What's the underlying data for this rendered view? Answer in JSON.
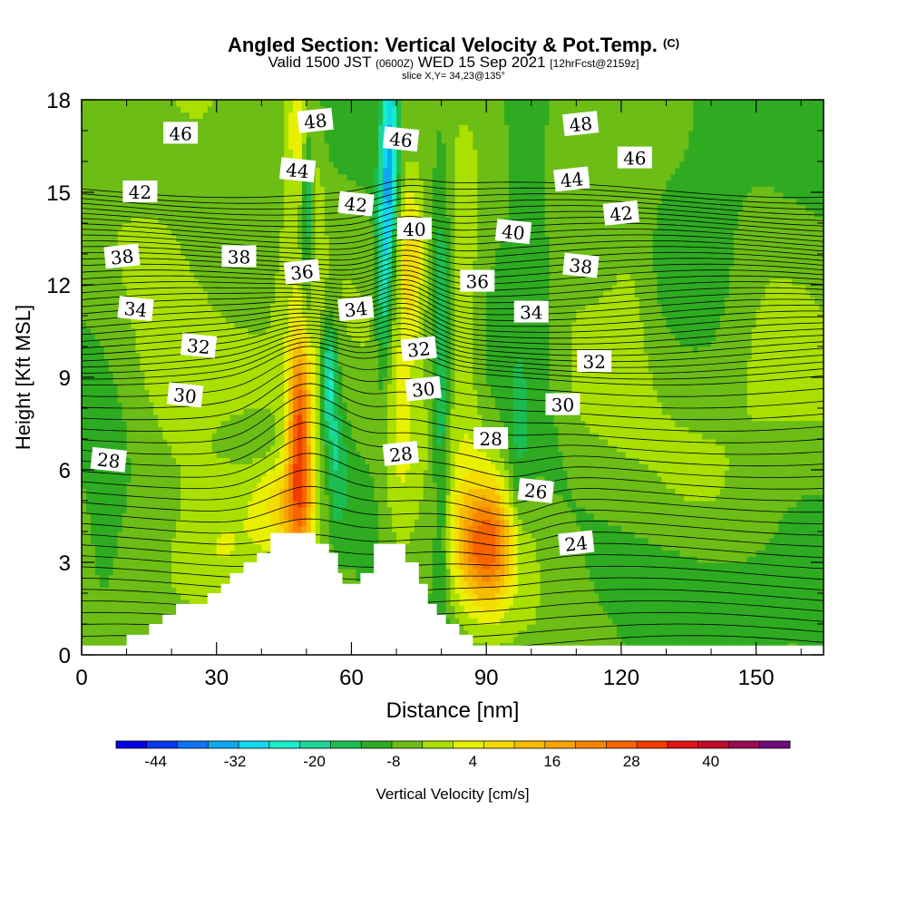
{
  "titles": {
    "main": "Angled Section: Vertical Velocity & Pot.Temp.",
    "main_suffix": "(C)",
    "valid_pre": "Valid 1500 JST",
    "valid_utc": "(0600Z)",
    "valid_date": "WED 15 Sep 2021",
    "valid_fcst": "[12hrFcst@2159z]",
    "slice": "slice X,Y= 34,23@135°"
  },
  "chart_data": {
    "type": "heatmap",
    "xlabel": "Distance [nm]",
    "ylabel": "Height [Kft MSL]",
    "xlim": [
      0,
      165
    ],
    "ylim": [
      0,
      18
    ],
    "x_ticks": [
      0,
      30,
      60,
      90,
      120,
      150
    ],
    "y_ticks": [
      0,
      3,
      6,
      9,
      12,
      15,
      18
    ],
    "colorbar": {
      "label": "Vertical Velocity [cm/s]",
      "tick_labels": [
        "-44",
        "-32",
        "-20",
        "-8",
        "4",
        "16",
        "28",
        "40"
      ],
      "tick_values": [
        -44,
        -32,
        -20,
        -8,
        4,
        16,
        28,
        40
      ],
      "range": [
        -50,
        52
      ],
      "step": 6,
      "colors": [
        "#0000e8",
        "#0a37f0",
        "#0f73f5",
        "#0ea8f2",
        "#12d6ee",
        "#18ecc8",
        "#1bd696",
        "#1cbd50",
        "#2fab22",
        "#6cbd16",
        "#a9e000",
        "#e8f000",
        "#f5dc00",
        "#f7bc00",
        "#f7a200",
        "#f78400",
        "#f76400",
        "#f23c00",
        "#e01414",
        "#c00a2a",
        "#9a0a52",
        "#6e0a7a"
      ]
    },
    "terrain": [
      [
        0,
        0.3
      ],
      [
        10,
        0.3
      ],
      [
        10,
        0.65
      ],
      [
        15,
        0.65
      ],
      [
        15,
        1.0
      ],
      [
        18,
        1.0
      ],
      [
        18,
        1.3
      ],
      [
        21,
        1.3
      ],
      [
        21,
        1.65
      ],
      [
        28,
        1.65
      ],
      [
        28,
        2.0
      ],
      [
        31,
        2.0
      ],
      [
        31,
        2.3
      ],
      [
        33,
        2.3
      ],
      [
        33,
        2.65
      ],
      [
        36,
        2.65
      ],
      [
        36,
        3.0
      ],
      [
        39,
        3.0
      ],
      [
        39,
        3.3
      ],
      [
        42,
        3.3
      ],
      [
        42,
        3.95
      ],
      [
        52,
        3.95
      ],
      [
        52,
        3.6
      ],
      [
        55,
        3.6
      ],
      [
        55,
        3.3
      ],
      [
        57,
        3.3
      ],
      [
        57,
        2.65
      ],
      [
        58,
        2.65
      ],
      [
        58,
        2.3
      ],
      [
        62,
        2.3
      ],
      [
        62,
        2.65
      ],
      [
        65,
        2.65
      ],
      [
        65,
        3.6
      ],
      [
        72,
        3.6
      ],
      [
        72,
        3.0
      ],
      [
        75,
        3.0
      ],
      [
        75,
        2.3
      ],
      [
        77,
        2.3
      ],
      [
        77,
        1.65
      ],
      [
        79,
        1.65
      ],
      [
        79,
        1.3
      ],
      [
        81,
        1.3
      ],
      [
        81,
        1.0
      ],
      [
        84,
        1.0
      ],
      [
        84,
        0.65
      ],
      [
        87,
        0.65
      ],
      [
        87,
        0.3
      ],
      [
        165,
        0.3
      ]
    ],
    "features": [
      {
        "x": 48.5,
        "y": 7.0,
        "w": 30,
        "dx": 1.6,
        "dy": 2.2
      },
      {
        "x": 48.5,
        "y": 6.2,
        "w": 18,
        "dx": 2.6,
        "dy": 3.6
      },
      {
        "x": 48.5,
        "y": 17.5,
        "w": 20,
        "dx": 2.0,
        "dy": 1.8
      },
      {
        "x": 52.0,
        "y": 14.0,
        "w": 10,
        "dx": 1.2,
        "dy": 3.0
      },
      {
        "x": 55.0,
        "y": 9.0,
        "w": -24,
        "dx": 1.3,
        "dy": 1.4
      },
      {
        "x": 50.5,
        "y": 14.5,
        "w": -20,
        "dx": 1.2,
        "dy": 2.8
      },
      {
        "x": 57.0,
        "y": 6.0,
        "w": -12,
        "dx": 1.5,
        "dy": 1.5
      },
      {
        "x": 68.5,
        "y": 16.0,
        "w": -32,
        "dx": 1.3,
        "dy": 2.6
      },
      {
        "x": 67.0,
        "y": 12.0,
        "w": -18,
        "dx": 1.2,
        "dy": 2.6
      },
      {
        "x": 73.0,
        "y": 13.0,
        "w": 22,
        "dx": 2.2,
        "dy": 1.8
      },
      {
        "x": 71.0,
        "y": 6.0,
        "w": 12,
        "dx": 3.0,
        "dy": 3.0
      },
      {
        "x": 90.0,
        "y": 3.5,
        "w": 32,
        "dx": 4.5,
        "dy": 1.3
      },
      {
        "x": 88.5,
        "y": 4.2,
        "w": 14,
        "dx": 7.0,
        "dy": 2.4
      },
      {
        "x": 97.0,
        "y": 5.5,
        "w": -10,
        "dx": 2.0,
        "dy": 2.0
      },
      {
        "x": 45.0,
        "y": 4.8,
        "w": 14,
        "dx": 4.0,
        "dy": 1.0
      },
      {
        "x": 30.0,
        "y": 3.0,
        "w": 10,
        "dx": 8.0,
        "dy": 1.5
      },
      {
        "x": 36.0,
        "y": 7.0,
        "w": -7,
        "dx": 6.0,
        "dy": 0.7
      },
      {
        "x": 40.0,
        "y": 10.0,
        "w": 6,
        "dx": 10.0,
        "dy": 3.0
      },
      {
        "x": 100.0,
        "y": 14.0,
        "w": -8,
        "dx": 6.0,
        "dy": 4.0
      },
      {
        "x": 140.0,
        "y": 14.0,
        "w": -5,
        "dx": 6.0,
        "dy": 4.0
      },
      {
        "x": 113.0,
        "y": 9.0,
        "w": 8,
        "dx": 7.0,
        "dy": 2.0
      },
      {
        "x": 148.0,
        "y": 8.5,
        "w": 6,
        "dx": 12.0,
        "dy": 2.5
      },
      {
        "x": 20.0,
        "y": 15.0,
        "w": 6,
        "dx": 10.0,
        "dy": 3.0
      },
      {
        "x": 20.0,
        "y": 9.5,
        "w": 5,
        "dx": 8.0,
        "dy": 3.0
      },
      {
        "x": 140.0,
        "y": 2.0,
        "w": -6,
        "dx": 20.0,
        "dy": 1.5
      },
      {
        "x": 5.0,
        "y": 3.0,
        "w": -6,
        "dx": 3.0,
        "dy": 3.0
      },
      {
        "x": 80.0,
        "y": 8.0,
        "w": -14,
        "dx": 1.3,
        "dy": 6.0
      },
      {
        "x": 85.0,
        "y": 11.0,
        "w": 10,
        "dx": 2.5,
        "dy": 3.0
      },
      {
        "x": 107.0,
        "y": 16.0,
        "w": 8,
        "dx": 3.0,
        "dy": 2.5
      },
      {
        "x": 122.0,
        "y": 13.0,
        "w": 7,
        "dx": 4.0,
        "dy": 3.0
      }
    ],
    "contour_labels": [
      {
        "text": "48",
        "x": 52,
        "y": 17.3
      },
      {
        "text": "46",
        "x": 22,
        "y": 16.9
      },
      {
        "text": "46",
        "x": 71,
        "y": 16.7
      },
      {
        "text": "48",
        "x": 111,
        "y": 17.2
      },
      {
        "text": "46",
        "x": 123,
        "y": 16.1
      },
      {
        "text": "44",
        "x": 48,
        "y": 15.7
      },
      {
        "text": "44",
        "x": 109,
        "y": 15.4
      },
      {
        "text": "42",
        "x": 13,
        "y": 15.0
      },
      {
        "text": "42",
        "x": 61,
        "y": 14.6
      },
      {
        "text": "42",
        "x": 120,
        "y": 14.3
      },
      {
        "text": "40",
        "x": 74,
        "y": 13.8
      },
      {
        "text": "40",
        "x": 96,
        "y": 13.7
      },
      {
        "text": "38",
        "x": 9,
        "y": 12.9
      },
      {
        "text": "38",
        "x": 35,
        "y": 12.9
      },
      {
        "text": "38",
        "x": 111,
        "y": 12.6
      },
      {
        "text": "36",
        "x": 49,
        "y": 12.4
      },
      {
        "text": "36",
        "x": 88,
        "y": 12.1
      },
      {
        "text": "34",
        "x": 12,
        "y": 11.2
      },
      {
        "text": "34",
        "x": 61,
        "y": 11.2
      },
      {
        "text": "34",
        "x": 100,
        "y": 11.1
      },
      {
        "text": "32",
        "x": 26,
        "y": 10.0
      },
      {
        "text": "32",
        "x": 75,
        "y": 9.9
      },
      {
        "text": "32",
        "x": 114,
        "y": 9.5
      },
      {
        "text": "30",
        "x": 23,
        "y": 8.4
      },
      {
        "text": "30",
        "x": 76,
        "y": 8.6
      },
      {
        "text": "30",
        "x": 107,
        "y": 8.1
      },
      {
        "text": "28",
        "x": 6,
        "y": 6.3
      },
      {
        "text": "28",
        "x": 71,
        "y": 6.5
      },
      {
        "text": "28",
        "x": 91,
        "y": 7.0
      },
      {
        "text": "26",
        "x": 101,
        "y": 5.3
      },
      {
        "text": "24",
        "x": 110,
        "y": 3.6
      }
    ]
  }
}
